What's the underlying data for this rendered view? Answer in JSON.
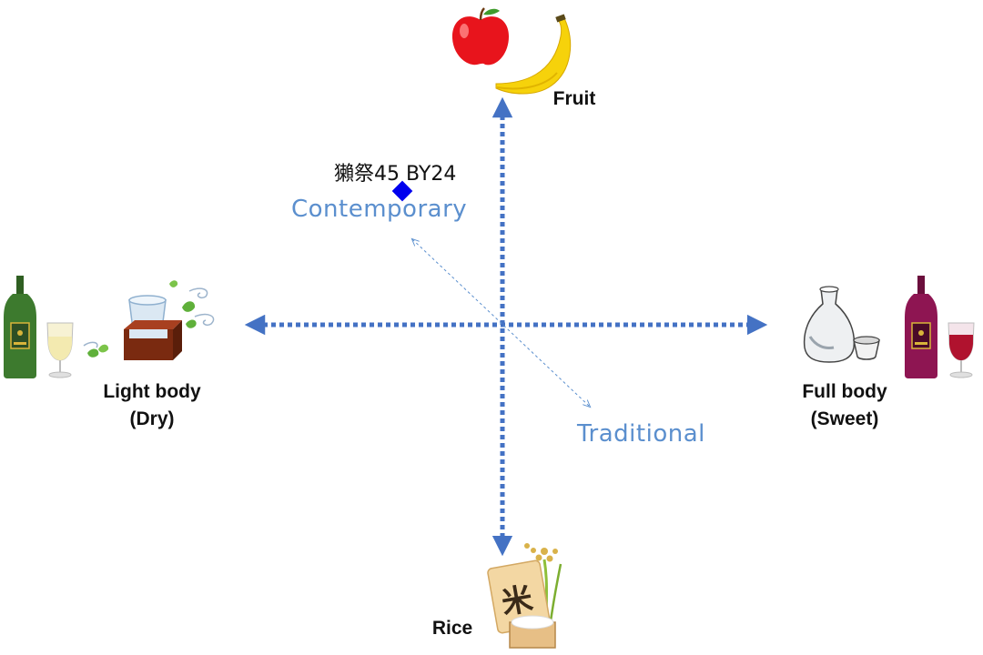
{
  "diagram": {
    "axes": {
      "top": "Fruit",
      "bottom": "Rice",
      "left_line1": "Light body",
      "left_line2": "(Dry)",
      "right_line1": "Full body",
      "right_line2": "(Sweet)"
    },
    "styles": {
      "contemporary": "Contemporary",
      "traditional": "Traditional"
    },
    "points": [
      {
        "label": "獺祭45 BY24"
      }
    ],
    "icons": [
      "apple-icon",
      "banana-icon",
      "rice-box-icon",
      "rice-plant-icon",
      "white-wine-bottle-icon",
      "white-wine-glass-icon",
      "sake-masu-cup-icon",
      "leaf-icon",
      "tokkuri-icon",
      "ochoko-icon",
      "red-wine-bottle-icon",
      "red-wine-glass-icon"
    ],
    "rice_box_glyph": "米",
    "colors": {
      "axis": "#4472c4",
      "style_text": "#5b8fce",
      "point": "#0000ee",
      "apple": "#e8141c",
      "banana": "#f6d20b",
      "white_wine_bottle": "#3d7a2e",
      "red_wine_bottle": "#8e1552",
      "masu": "#7a2a10"
    }
  }
}
